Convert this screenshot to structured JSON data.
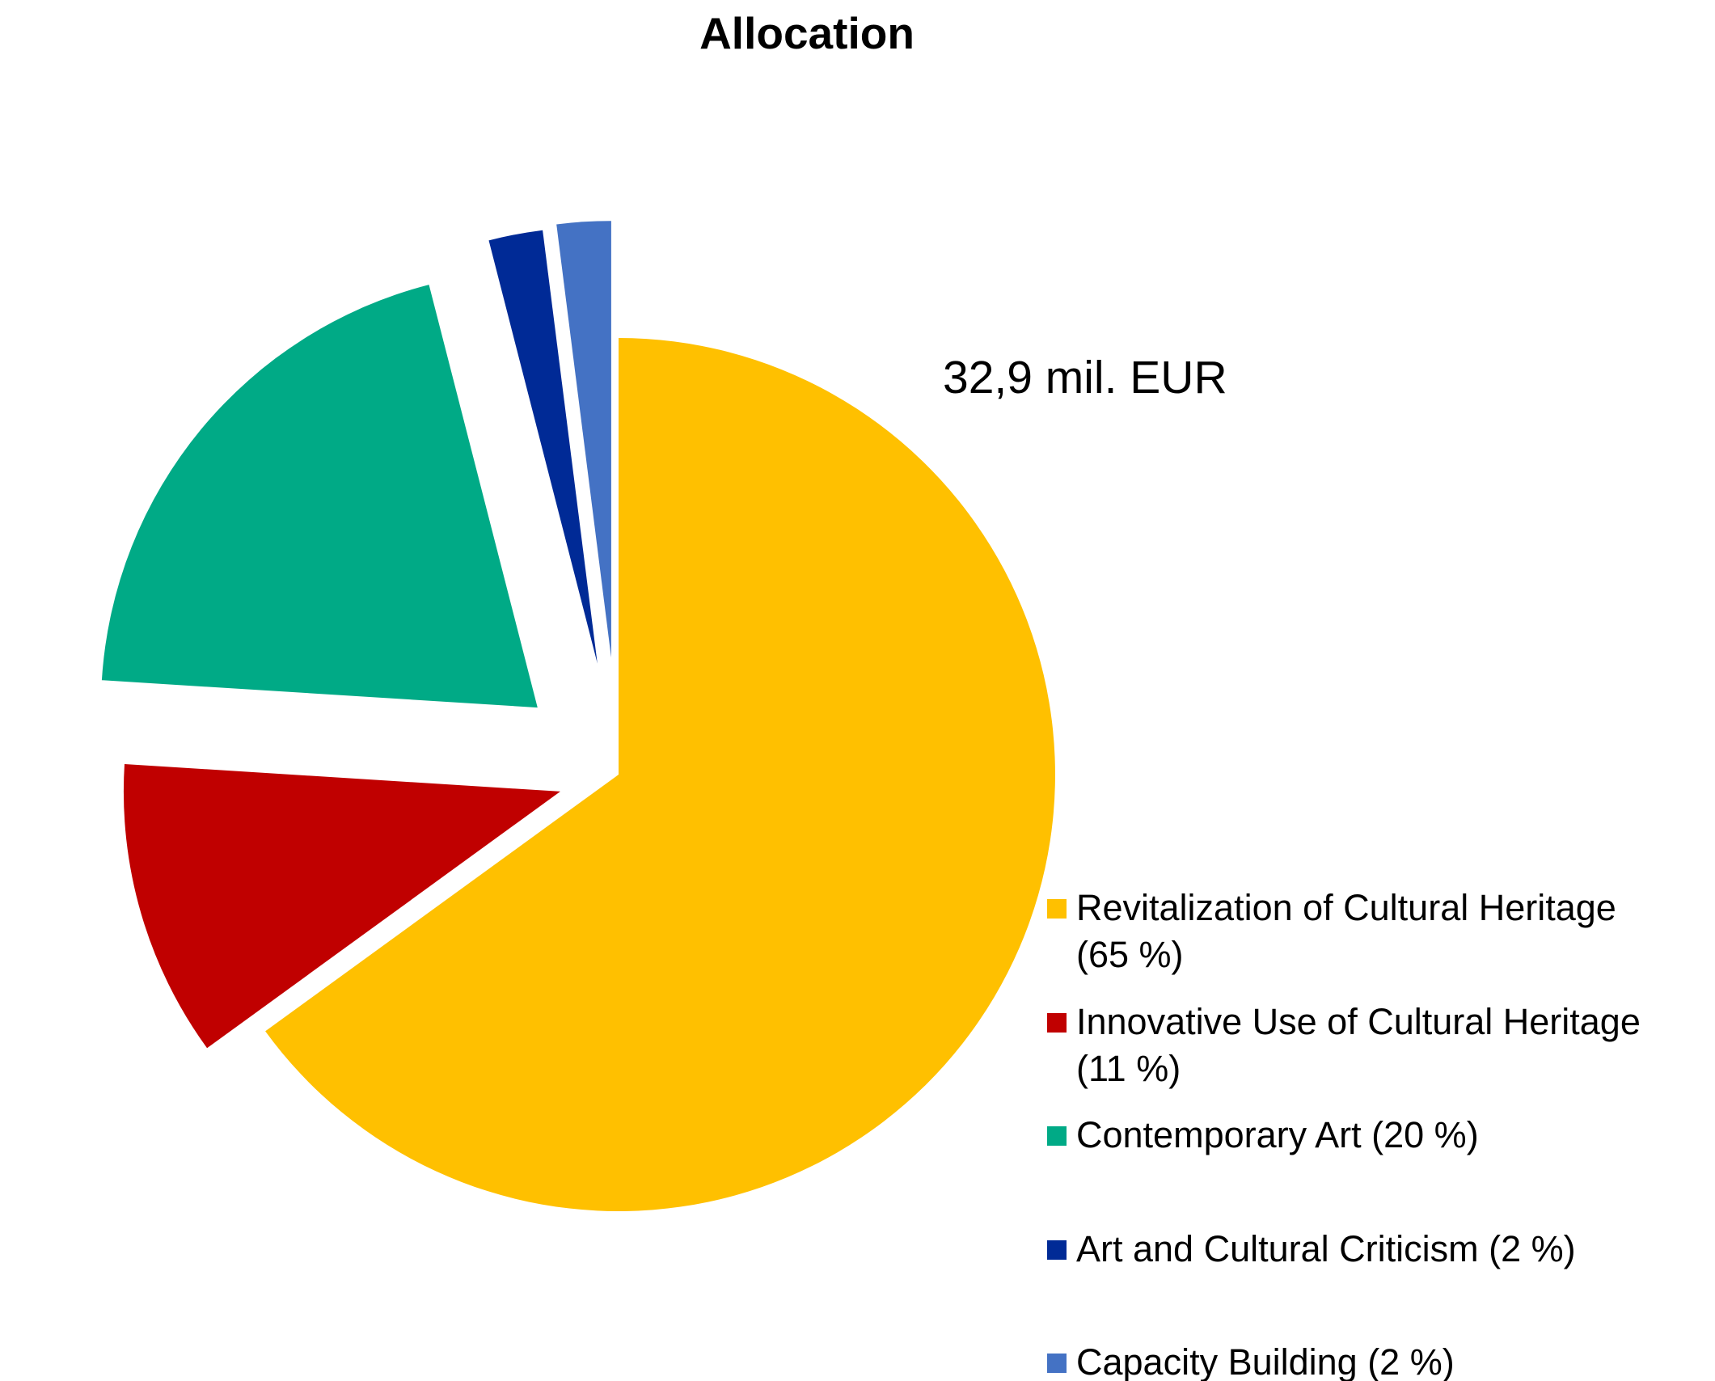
{
  "chart_data": {
    "type": "pie",
    "title": "Allocation",
    "annotation": "32,9 mil. EUR",
    "legend_position": "right",
    "slices": [
      {
        "label_lines": [
          "Revitalization of Cultural Heritage",
          "(65 %)"
        ],
        "value": 65,
        "color": "#FFC000",
        "exploded": false
      },
      {
        "label_lines": [
          "Innovative Use of Cultural Heritage",
          "(11 %)"
        ],
        "value": 11,
        "color": "#C00000",
        "exploded": true
      },
      {
        "label_lines": [
          "Contemporary Art (20 %)"
        ],
        "value": 20,
        "color": "#00AA86",
        "exploded": true
      },
      {
        "label_lines": [
          "Art and Cultural Criticism (2 %)"
        ],
        "value": 2,
        "color": "#002A96",
        "exploded": true
      },
      {
        "label_lines": [
          "Capacity Building (2 %)"
        ],
        "value": 2,
        "color": "#4472C4",
        "exploded": true
      }
    ]
  }
}
